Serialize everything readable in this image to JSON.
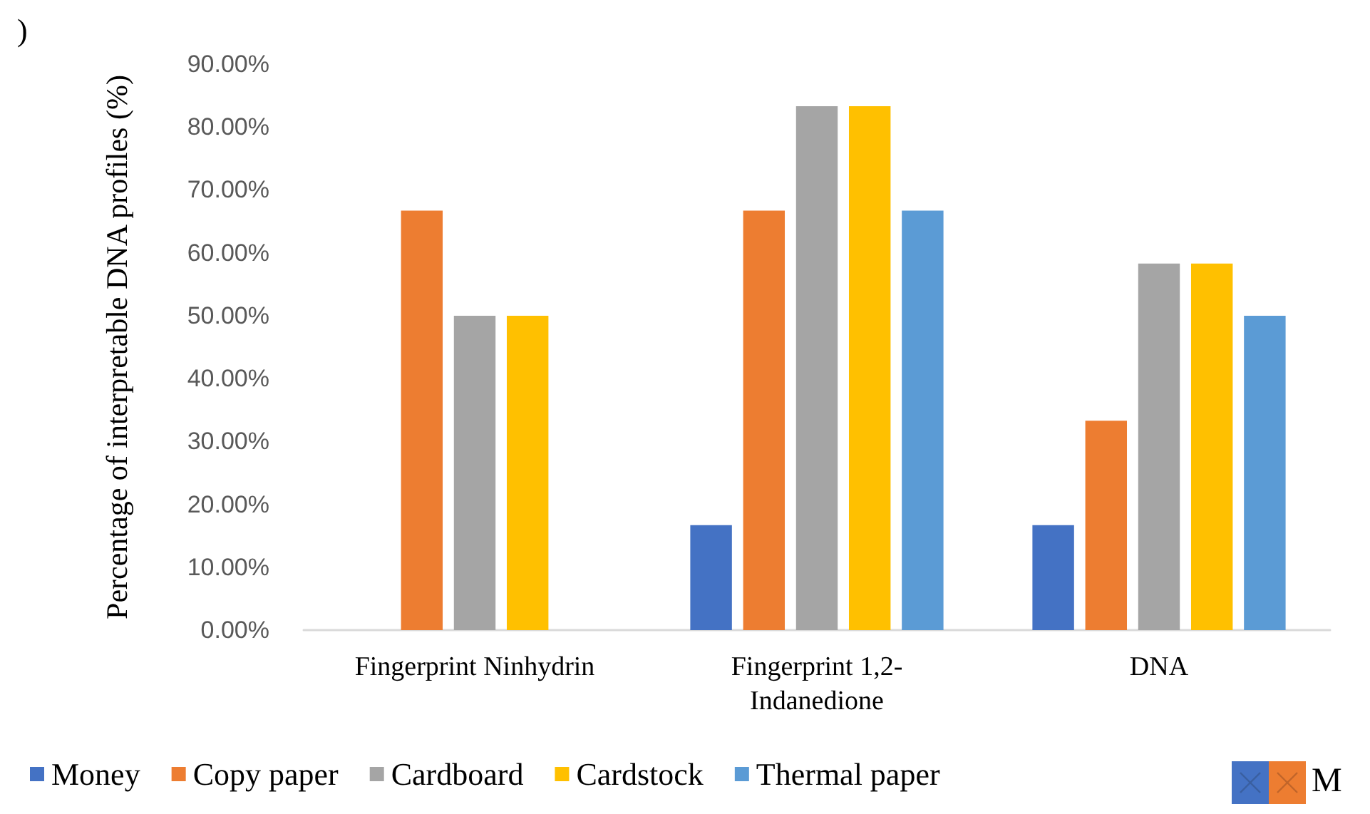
{
  "chart_data": {
    "type": "bar",
    "ylabel": "Percentage of interpretable DNA profiles (%)",
    "categories": [
      "Fingerprint Ninhydrin",
      "Fingerprint 1,2-\nIndanedione",
      "DNA"
    ],
    "series": [
      {
        "name": "Money",
        "color": "#4472c4",
        "values": [
          0,
          16.7,
          16.7
        ]
      },
      {
        "name": "Copy paper",
        "color": "#ed7d31",
        "values": [
          66.7,
          66.7,
          33.3
        ]
      },
      {
        "name": "Cardboard",
        "color": "#a5a5a5",
        "values": [
          50,
          83.3,
          58.3
        ]
      },
      {
        "name": "Cardstock",
        "color": "#ffc000",
        "values": [
          50,
          83.3,
          58.3
        ]
      },
      {
        "name": "Thermal paper",
        "color": "#5b9bd5",
        "values": [
          null,
          66.7,
          50
        ]
      }
    ],
    "ylim": [
      0,
      90
    ],
    "yticks": [
      {
        "value": 0,
        "label": "0.00%"
      },
      {
        "value": 10,
        "label": "10.00%"
      },
      {
        "value": 20,
        "label": "20.00%"
      },
      {
        "value": 30,
        "label": "30.00%"
      },
      {
        "value": 40,
        "label": "40.00%"
      },
      {
        "value": 50,
        "label": "50.00%"
      },
      {
        "value": 60,
        "label": "60.00%"
      },
      {
        "value": 70,
        "label": "70.00%"
      },
      {
        "value": 80,
        "label": "80.00%"
      },
      {
        "value": 90,
        "label": "90.00%"
      }
    ],
    "grid": false,
    "legend": "bottom",
    "annotations": [
      ")",
      "M"
    ]
  }
}
